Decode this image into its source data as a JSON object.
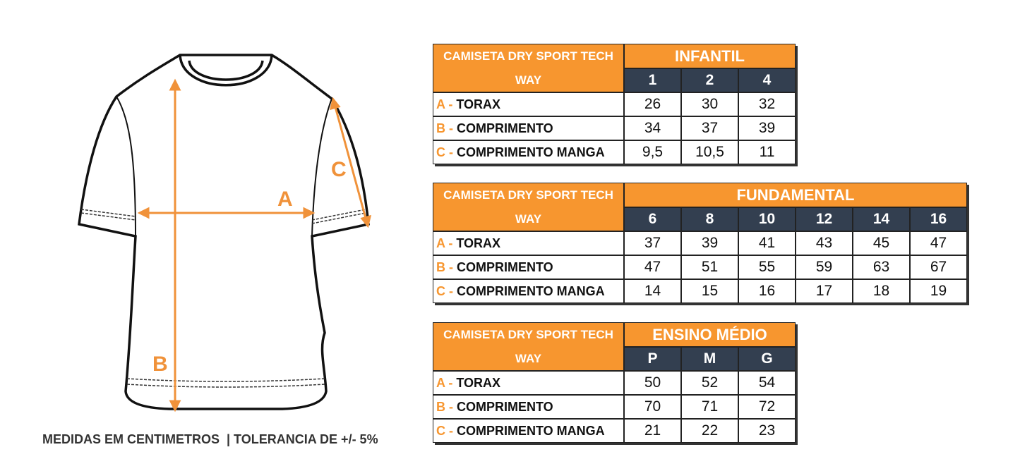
{
  "diagram": {
    "labels": [
      "A",
      "B",
      "C"
    ]
  },
  "footer": "MEDIDAS EM CENTIMETROS  | TOLERANCIA DE +/- 5%",
  "tables": [
    {
      "title": "CAMISETA DRY SPORT TECH WAY",
      "group": "INFANTIL",
      "sizes": [
        "1",
        "2",
        "4"
      ],
      "rows": [
        {
          "letter": "A -",
          "name": "TORAX",
          "values": [
            "26",
            "30",
            "32"
          ]
        },
        {
          "letter": "B -",
          "name": "COMPRIMENTO",
          "values": [
            "34",
            "37",
            "39"
          ]
        },
        {
          "letter": "C -",
          "name": "COMPRIMENTO MANGA",
          "values": [
            "9,5",
            "10,5",
            "11"
          ]
        }
      ]
    },
    {
      "title": "CAMISETA DRY SPORT TECH WAY",
      "group": "FUNDAMENTAL",
      "sizes": [
        "6",
        "8",
        "10",
        "12",
        "14",
        "16"
      ],
      "rows": [
        {
          "letter": "A -",
          "name": "TORAX",
          "values": [
            "37",
            "39",
            "41",
            "43",
            "45",
            "47"
          ]
        },
        {
          "letter": "B -",
          "name": "COMPRIMENTO",
          "values": [
            "47",
            "51",
            "55",
            "59",
            "63",
            "67"
          ]
        },
        {
          "letter": "C -",
          "name": "COMPRIMENTO MANGA",
          "values": [
            "14",
            "15",
            "16",
            "17",
            "18",
            "19"
          ]
        }
      ]
    },
    {
      "title": "CAMISETA DRY SPORT TECH WAY",
      "group": "ENSINO MÉDIO",
      "sizes": [
        "P",
        "M",
        "G"
      ],
      "rows": [
        {
          "letter": "A -",
          "name": "TORAX",
          "values": [
            "50",
            "52",
            "54"
          ]
        },
        {
          "letter": "B -",
          "name": "COMPRIMENTO",
          "values": [
            "70",
            "71",
            "72"
          ]
        },
        {
          "letter": "C -",
          "name": "COMPRIMENTO MANGA",
          "values": [
            "21",
            "22",
            "23"
          ]
        }
      ]
    }
  ]
}
